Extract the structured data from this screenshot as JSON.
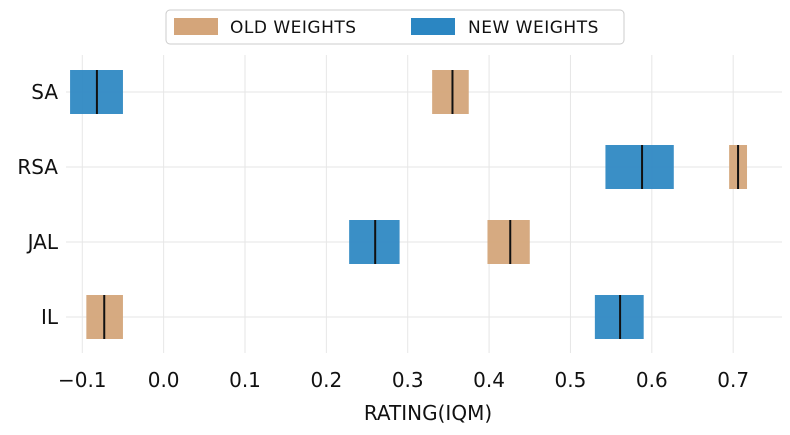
{
  "chart_data": {
    "type": "interval",
    "title": "",
    "xlabel": "RATING(IQM)",
    "ylabel": "",
    "xlim": [
      -0.12,
      0.76
    ],
    "grid": true,
    "legend_position": "top-center",
    "categories": [
      "SA",
      "RSA",
      "JAL",
      "IL"
    ],
    "x_ticks": [
      "−0.1",
      "0.0",
      "0.1",
      "0.2",
      "0.3",
      "0.4",
      "0.5",
      "0.6",
      "0.7"
    ],
    "x_tick_values": [
      -0.1,
      0.0,
      0.1,
      0.2,
      0.3,
      0.4,
      0.5,
      0.6,
      0.7
    ],
    "series": [
      {
        "name": "OLD WEIGHTS",
        "color": "#d4a57a",
        "data": [
          {
            "category": "SA",
            "low": 0.33,
            "high": 0.375,
            "median": 0.355
          },
          {
            "category": "RSA",
            "low": 0.695,
            "high": 0.717,
            "median": 0.706
          },
          {
            "category": "JAL",
            "low": 0.398,
            "high": 0.45,
            "median": 0.426
          },
          {
            "category": "IL",
            "low": -0.095,
            "high": -0.05,
            "median": -0.073
          }
        ]
      },
      {
        "name": "NEW WEIGHTS",
        "color": "#2b86c2",
        "data": [
          {
            "category": "SA",
            "low": -0.115,
            "high": -0.05,
            "median": -0.082
          },
          {
            "category": "RSA",
            "low": 0.543,
            "high": 0.627,
            "median": 0.588
          },
          {
            "category": "JAL",
            "low": 0.228,
            "high": 0.29,
            "median": 0.26
          },
          {
            "category": "IL",
            "low": 0.53,
            "high": 0.59,
            "median": 0.561
          }
        ]
      }
    ]
  }
}
